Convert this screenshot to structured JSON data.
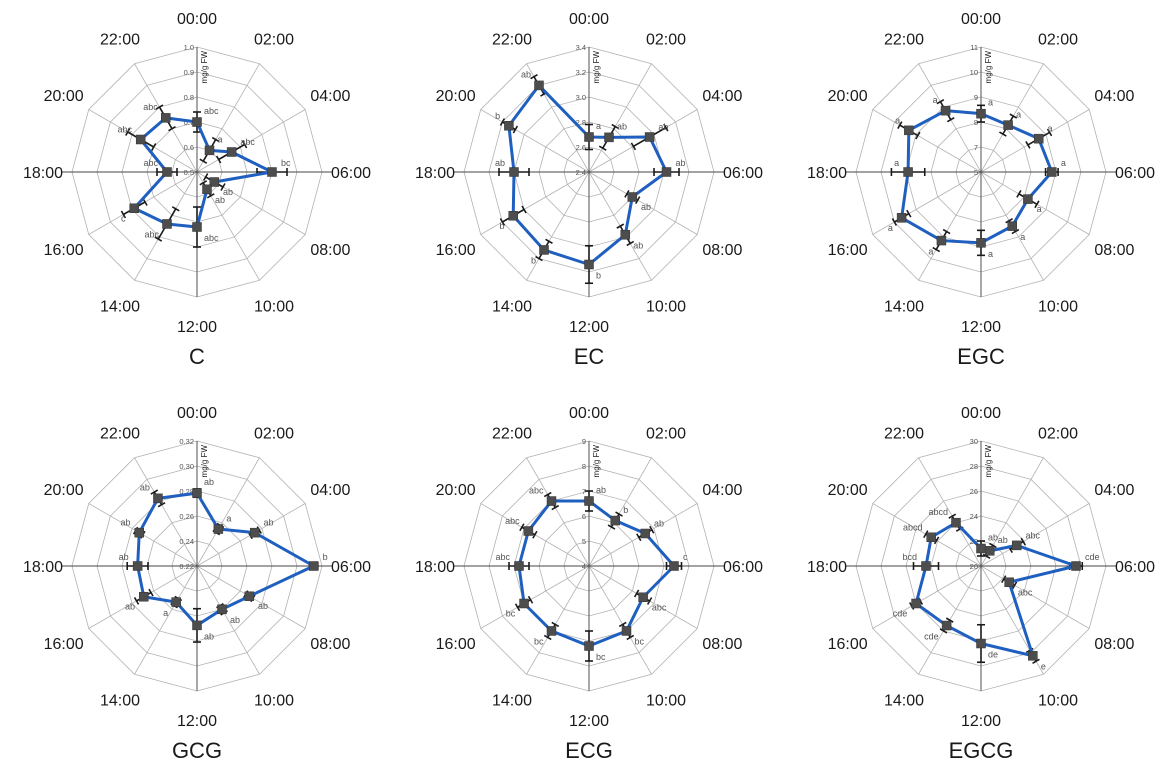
{
  "colors": {
    "series": "#1f5fbf",
    "marker": "#4d4d4d",
    "grid": "#b3b3b3",
    "errorbar": "#1a1a1a",
    "text": "#1a1a1a",
    "small_text": "#555555"
  },
  "chart_data": [
    {
      "type": "radar",
      "title": "C",
      "unit_label": "mg/g FW",
      "categories": [
        "00:00",
        "02:00",
        "04:00",
        "06:00",
        "08:00",
        "10:00",
        "12:00",
        "14:00",
        "16:00",
        "18:00",
        "20:00",
        "22:00"
      ],
      "rlim": [
        0.5,
        1.0
      ],
      "ticks": [
        "0.5",
        "0.6",
        "0.7",
        "0.8",
        "0.9",
        "1.0"
      ],
      "values": [
        0.7,
        0.6,
        0.66,
        0.8,
        0.58,
        0.58,
        0.72,
        0.74,
        0.79,
        0.62,
        0.76,
        0.75
      ],
      "errors": [
        0.04,
        0.05,
        0.06,
        0.06,
        0.04,
        0.03,
        0.08,
        0.07,
        0.05,
        0.04,
        0.06,
        0.05
      ],
      "letters": [
        "abc",
        "a",
        "abc",
        "bc",
        "ab",
        "ab",
        "abc",
        "abc",
        "c",
        "abc",
        "abc",
        "abc"
      ]
    },
    {
      "type": "radar",
      "title": "EC",
      "unit_label": "mg/g FW",
      "categories": [
        "00:00",
        "02:00",
        "04:00",
        "06:00",
        "08:00",
        "10:00",
        "12:00",
        "14:00",
        "16:00",
        "18:00",
        "20:00",
        "22:00"
      ],
      "rlim": [
        2.4,
        3.4
      ],
      "ticks": [
        "2.4",
        "2.6",
        "2.8",
        "3.0",
        "3.2",
        "3.4"
      ],
      "values": [
        2.68,
        2.72,
        2.96,
        3.02,
        2.8,
        2.98,
        3.14,
        3.12,
        3.1,
        3.0,
        3.14,
        3.2
      ],
      "errors": [
        0.1,
        0.1,
        0.15,
        0.1,
        0.05,
        0.08,
        0.15,
        0.08,
        0.1,
        0.12,
        0.06,
        0.08
      ],
      "letters": [
        "a",
        "ab",
        "ab",
        "ab",
        "ab",
        "ab",
        "b",
        "b",
        "b",
        "ab",
        "b",
        "ab"
      ]
    },
    {
      "type": "radar",
      "title": "EGC",
      "unit_label": "mg/g FW",
      "categories": [
        "00:00",
        "02:00",
        "04:00",
        "06:00",
        "08:00",
        "10:00",
        "12:00",
        "14:00",
        "16:00",
        "18:00",
        "20:00",
        "22:00"
      ],
      "rlim": [
        5,
        11
      ],
      "ticks": [
        "5",
        "7",
        "8",
        "9",
        "10",
        "11"
      ],
      "values": [
        7.8,
        7.6,
        8.2,
        8.4,
        7.6,
        8.0,
        8.4,
        8.8,
        9.4,
        8.5,
        9.0,
        8.4
      ],
      "errors": [
        0.4,
        0.5,
        0.6,
        0.3,
        0.5,
        0.3,
        0.6,
        0.5,
        0.4,
        0.8,
        0.5,
        0.5
      ],
      "letters": [
        "a",
        "a",
        "a",
        "a",
        "a",
        "a",
        "a",
        "a",
        "a",
        "a",
        "a",
        "a"
      ]
    },
    {
      "type": "radar",
      "title": "GCG",
      "unit_label": "mg/g FW",
      "categories": [
        "00:00",
        "02:00",
        "04:00",
        "06:00",
        "08:00",
        "10:00",
        "12:00",
        "14:00",
        "16:00",
        "18:00",
        "20:00",
        "22:00"
      ],
      "rlim": [
        0.2,
        0.32
      ],
      "ticks": [
        "0.22",
        "0.24",
        "0.26",
        "0.28",
        "0.30",
        "0.32"
      ],
      "values": [
        0.27,
        0.241,
        0.264,
        0.312,
        0.258,
        0.248,
        0.257,
        0.24,
        0.259,
        0.257,
        0.264,
        0.275
      ],
      "errors": [
        0.004,
        0.004,
        0.005,
        0.004,
        0.004,
        0.004,
        0.016,
        0.004,
        0.008,
        0.01,
        0.004,
        0.007
      ],
      "letters": [
        "ab",
        "a",
        "ab",
        "b",
        "ab",
        "ab",
        "ab",
        "a",
        "ab",
        "ab",
        "ab",
        "ab"
      ]
    },
    {
      "type": "radar",
      "title": "ECG",
      "unit_label": "mg/g FW",
      "categories": [
        "00:00",
        "02:00",
        "04:00",
        "06:00",
        "08:00",
        "10:00",
        "12:00",
        "14:00",
        "16:00",
        "18:00",
        "20:00",
        "22:00"
      ],
      "rlim": [
        4,
        9
      ],
      "ticks": [
        "4",
        "5",
        "6",
        "7",
        "8",
        "9"
      ],
      "values": [
        6.6,
        6.1,
        6.6,
        7.4,
        6.5,
        7.0,
        7.2,
        7.0,
        7.0,
        6.8,
        6.8,
        7.0
      ],
      "errors": [
        0.4,
        0.3,
        0.3,
        0.3,
        0.3,
        0.3,
        0.6,
        0.3,
        0.3,
        0.4,
        0.3,
        0.3
      ],
      "letters": [
        "ab",
        "b",
        "ab",
        "c",
        "abc",
        "bc",
        "bc",
        "bc",
        "bc",
        "abc",
        "abc",
        "abc"
      ]
    },
    {
      "type": "radar",
      "title": "EGCG",
      "unit_label": "mg/g FW",
      "categories": [
        "00:00",
        "02:00",
        "04:00",
        "06:00",
        "08:00",
        "10:00",
        "12:00",
        "14:00",
        "16:00",
        "18:00",
        "20:00",
        "22:00"
      ],
      "rlim": [
        20,
        30
      ],
      "ticks": [
        "20",
        "22",
        "24",
        "26",
        "28",
        "30"
      ],
      "values": [
        21.4,
        21.4,
        23.3,
        27.6,
        22.6,
        28.3,
        26.2,
        25.5,
        26.0,
        24.4,
        24.6,
        24.0
      ],
      "errors": [
        0.6,
        0.5,
        0.6,
        0.5,
        0.5,
        0.5,
        1.5,
        0.5,
        0.4,
        1.0,
        0.5,
        0.6
      ],
      "letters": [
        "ab",
        "ab",
        "abc",
        "cde",
        "abc",
        "e",
        "de",
        "cde",
        "cde",
        "bcd",
        "abcd",
        "abcd"
      ]
    }
  ]
}
